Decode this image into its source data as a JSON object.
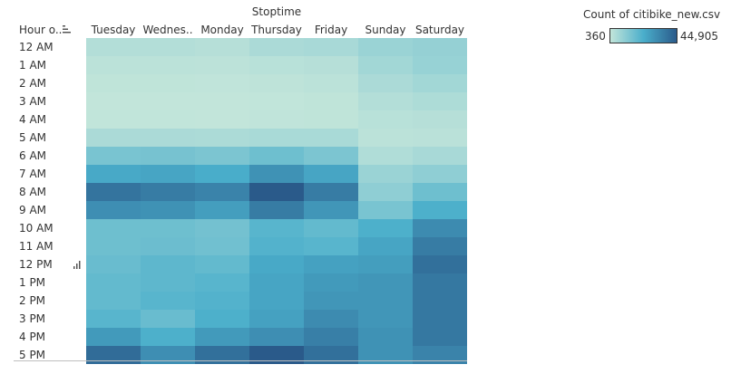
{
  "chart_data": {
    "type": "heatmap",
    "column_field_title": "Stoptime",
    "row_header_label": "Hour o..",
    "columns": [
      "Tuesday",
      "Wednes..",
      "Monday",
      "Thursday",
      "Friday",
      "Sunday",
      "Saturday"
    ],
    "rows": [
      "12 AM",
      "1 AM",
      "2 AM",
      "3 AM",
      "4 AM",
      "5 AM",
      "6 AM",
      "7 AM",
      "8 AM",
      "9 AM",
      "10 AM",
      "11 AM",
      "12 PM",
      "1 PM",
      "2 PM",
      "3 PM",
      "4 PM",
      "5 PM"
    ],
    "values": [
      [
        3500,
        3500,
        3000,
        5000,
        5500,
        8000,
        9000
      ],
      [
        2000,
        2000,
        1800,
        2500,
        3000,
        6500,
        8500
      ],
      [
        1200,
        1200,
        1000,
        1500,
        2000,
        5000,
        6500
      ],
      [
        800,
        800,
        700,
        900,
        1200,
        3500,
        4500
      ],
      [
        900,
        900,
        800,
        1000,
        1300,
        2500,
        3000
      ],
      [
        5000,
        5000,
        4800,
        5200,
        5200,
        2000,
        2200
      ],
      [
        14000,
        14500,
        13500,
        16000,
        13500,
        4000,
        5500
      ],
      [
        24000,
        25000,
        23000,
        30000,
        25000,
        8000,
        10000
      ],
      [
        38000,
        36000,
        34000,
        44905,
        36000,
        10000,
        16000
      ],
      [
        31000,
        30000,
        27000,
        36000,
        29000,
        14000,
        22000
      ],
      [
        16000,
        16000,
        15000,
        20000,
        18000,
        22000,
        32000
      ],
      [
        16000,
        16500,
        15500,
        21000,
        20000,
        25000,
        36000
      ],
      [
        17000,
        19000,
        18000,
        24000,
        26000,
        27000,
        39000
      ],
      [
        18000,
        19000,
        20000,
        25000,
        28000,
        29000,
        37000
      ],
      [
        18000,
        20000,
        21000,
        25000,
        29000,
        29000,
        37000
      ],
      [
        20000,
        17000,
        22000,
        26000,
        32000,
        29000,
        37000
      ],
      [
        28000,
        22000,
        28000,
        31000,
        35000,
        30000,
        37000
      ],
      [
        40000,
        31000,
        39000,
        44905,
        39000,
        30000,
        34000
      ]
    ],
    "legend": {
      "title": "Count of citibike_new.csv",
      "min": 360,
      "max": 44905,
      "min_label": "360",
      "max_label": "44,905",
      "low_color": "#c4e6da",
      "mid_color": "#4aaecb",
      "high_color": "#2a5a8a"
    }
  }
}
